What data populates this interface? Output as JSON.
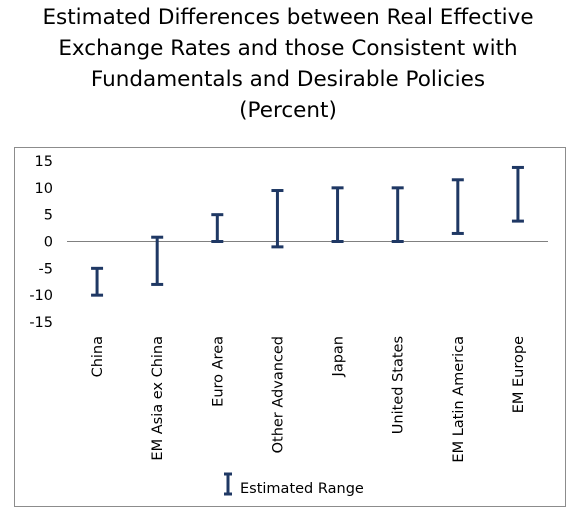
{
  "chart_data": {
    "type": "range",
    "title_lines": [
      "Estimated Differences between Real Effective",
      "Exchange Rates and those Consistent with",
      "Fundamentals and Desirable Policies",
      "(Percent)"
    ],
    "categories": [
      "China",
      "EM Asia ex China",
      "Euro Area",
      "Other Advanced",
      "Japan",
      "United States",
      "EM Latin America",
      "EM Europe"
    ],
    "series": [
      {
        "name": "Estimated Range",
        "low": [
          -10,
          -8,
          0,
          -1,
          0,
          0,
          1.5,
          3.8
        ],
        "high": [
          -5,
          0.8,
          5,
          9.5,
          10,
          10,
          11.5,
          13.8
        ]
      }
    ],
    "ylim": [
      -15,
      15
    ],
    "yticks": [
      15,
      10,
      5,
      0,
      -5,
      -10,
      -15
    ],
    "legend": {
      "label": "Estimated Range",
      "position": "bottom"
    },
    "colors": {
      "range": "#1f3864",
      "axis": "#808080"
    }
  }
}
